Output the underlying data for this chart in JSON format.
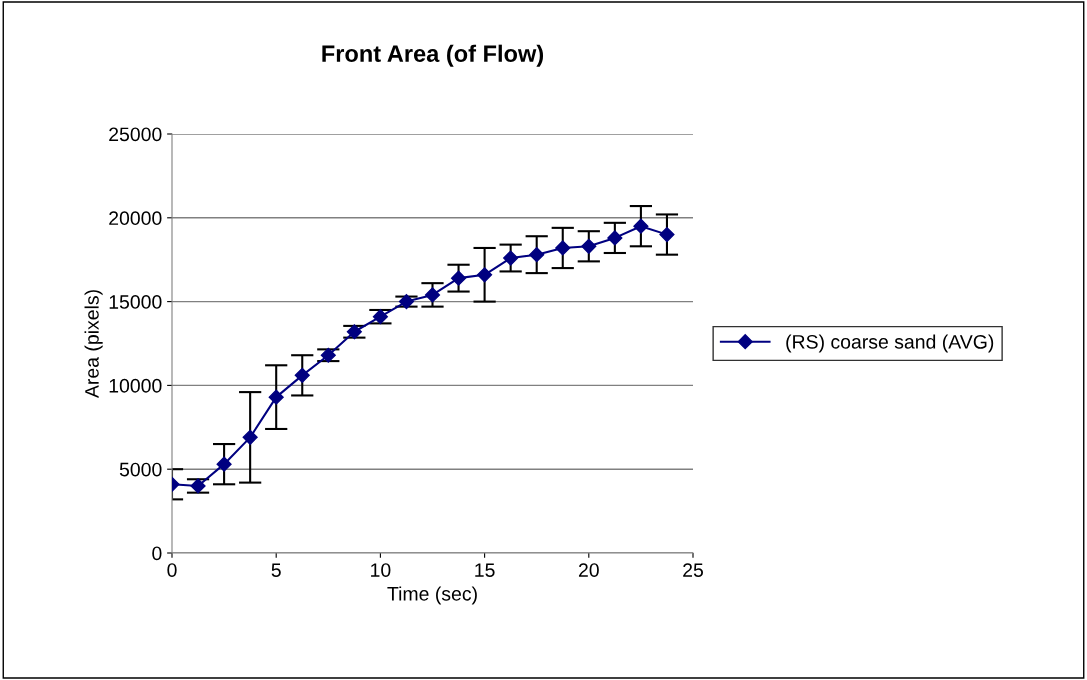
{
  "chart_data": {
    "type": "line",
    "title": "Front Area (of Flow)",
    "xlabel": "Time (sec)",
    "ylabel": "Area (pixels)",
    "x": [
      0,
      1.25,
      2.5,
      3.75,
      5,
      6.25,
      7.5,
      8.75,
      10,
      11.25,
      12.5,
      13.75,
      15,
      16.25,
      17.5,
      18.75,
      20,
      21.25,
      22.5,
      23.75
    ],
    "series": [
      {
        "name": "(RS) coarse sand (AVG)",
        "color": "#000080",
        "values": [
          4100,
          4000,
          5300,
          6900,
          9300,
          10600,
          11800,
          13200,
          14100,
          15000,
          15400,
          16400,
          16600,
          17600,
          17800,
          18200,
          18300,
          18800,
          19500,
          19000
        ],
        "errors": [
          900,
          400,
          1200,
          2700,
          1900,
          1200,
          350,
          350,
          400,
          300,
          700,
          800,
          1600,
          800,
          1100,
          1200,
          900,
          900,
          1200,
          1200
        ]
      }
    ],
    "xlim": [
      0,
      25
    ],
    "xticks": [
      0,
      5,
      10,
      15,
      20,
      25
    ],
    "ylim": [
      0,
      25000
    ],
    "yticks": [
      0,
      5000,
      10000,
      15000,
      20000,
      25000
    ],
    "grid": "y",
    "legend": "right",
    "marker": "diamond",
    "line_style": "solid"
  }
}
